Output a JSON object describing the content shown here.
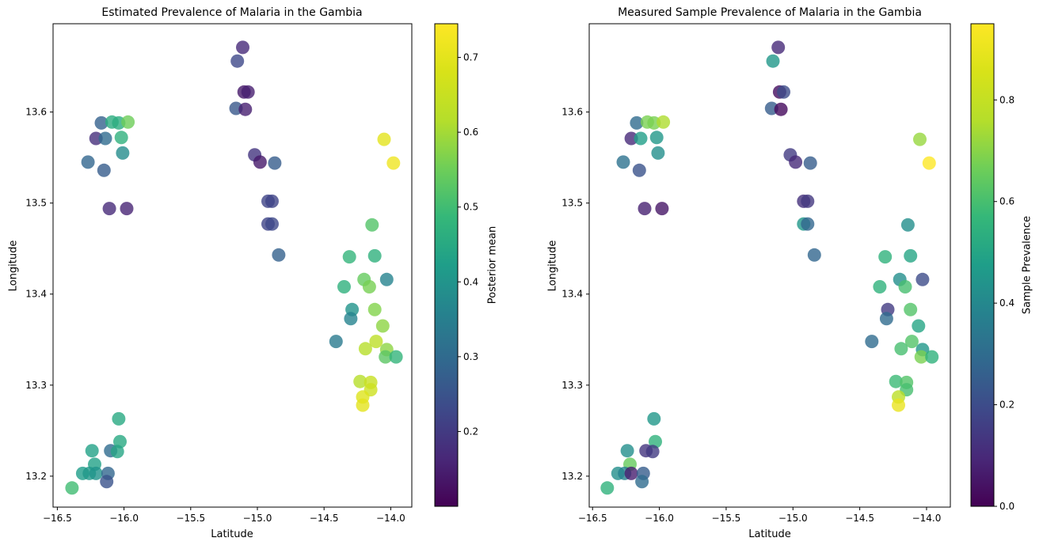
{
  "figure": {
    "background": "#ffffff",
    "text_color": "#000000",
    "colormap": "viridis"
  },
  "chart_data": [
    {
      "type": "scatter",
      "title": "Estimated Prevalence of Malaria in the Gambia",
      "xlabel": "Latitude",
      "ylabel": "Longitude",
      "colorbar_label": "Posterior mean",
      "colormap": "viridis",
      "marker_opacity": 0.8,
      "grid": false,
      "xlim": [
        -16.532,
        -13.842
      ],
      "ylim": [
        13.166,
        13.697
      ],
      "xticks": [
        -16.5,
        -16.0,
        -15.5,
        -15.0,
        -14.5,
        -14.0
      ],
      "yticks": [
        13.2,
        13.3,
        13.4,
        13.5,
        13.6
      ],
      "colorbar_ticks": [
        0.2,
        0.3,
        0.4,
        0.5,
        0.6,
        0.7
      ],
      "vmin": 0.1,
      "vmax": 0.745,
      "x": [
        -16.17,
        -16.09,
        -16.04,
        -15.97,
        -16.21,
        -16.14,
        -16.02,
        -16.01,
        -16.27,
        -16.15,
        -16.11,
        -15.98,
        -15.11,
        -15.15,
        -15.1,
        -15.07,
        -15.16,
        -15.09,
        -15.02,
        -14.98,
        -14.87,
        -14.92,
        -14.89,
        -14.92,
        -14.89,
        -14.84,
        -14.05,
        -13.98,
        -14.14,
        -14.31,
        -14.12,
        -14.35,
        -14.2,
        -14.16,
        -14.03,
        -14.29,
        -14.3,
        -14.12,
        -14.06,
        -14.41,
        -14.19,
        -14.11,
        -14.03,
        -14.04,
        -13.96,
        -14.23,
        -14.15,
        -14.15,
        -14.21,
        -14.21,
        -16.04,
        -16.03,
        -16.24,
        -16.1,
        -16.05,
        -16.22,
        -16.31,
        -16.26,
        -16.21,
        -16.12,
        -16.13,
        -16.39
      ],
      "y": [
        13.588,
        13.589,
        13.588,
        13.589,
        13.571,
        13.571,
        13.572,
        13.555,
        13.545,
        13.536,
        13.494,
        13.494,
        13.671,
        13.656,
        13.622,
        13.622,
        13.604,
        13.603,
        13.553,
        13.545,
        13.544,
        13.502,
        13.502,
        13.477,
        13.477,
        13.443,
        13.57,
        13.544,
        13.476,
        13.441,
        13.442,
        13.408,
        13.416,
        13.408,
        13.416,
        13.383,
        13.373,
        13.383,
        13.365,
        13.348,
        13.34,
        13.348,
        13.339,
        13.331,
        13.331,
        13.304,
        13.303,
        13.295,
        13.287,
        13.278,
        13.263,
        13.238,
        13.228,
        13.228,
        13.227,
        13.213,
        13.203,
        13.203,
        13.203,
        13.203,
        13.194,
        13.187
      ],
      "values": [
        0.28,
        0.46,
        0.46,
        0.55,
        0.18,
        0.3,
        0.47,
        0.38,
        0.29,
        0.27,
        0.17,
        0.16,
        0.17,
        0.23,
        0.14,
        0.15,
        0.26,
        0.15,
        0.19,
        0.14,
        0.27,
        0.22,
        0.22,
        0.22,
        0.23,
        0.28,
        0.7,
        0.72,
        0.52,
        0.48,
        0.47,
        0.47,
        0.54,
        0.56,
        0.36,
        0.4,
        0.36,
        0.57,
        0.58,
        0.34,
        0.62,
        0.63,
        0.58,
        0.53,
        0.48,
        0.62,
        0.65,
        0.66,
        0.69,
        0.7,
        0.45,
        0.45,
        0.43,
        0.3,
        0.44,
        0.43,
        0.42,
        0.41,
        0.4,
        0.29,
        0.25,
        0.5
      ]
    },
    {
      "type": "scatter",
      "title": "Measured Sample Prevalence of Malaria in the Gambia",
      "xlabel": "Latitude",
      "ylabel": "Longitude",
      "colorbar_label": "Sample Prevalence",
      "colormap": "viridis",
      "marker_opacity": 0.8,
      "grid": false,
      "xlim": [
        -16.525,
        -13.822
      ],
      "ylim": [
        13.166,
        13.697
      ],
      "xticks": [
        -16.5,
        -16.0,
        -15.5,
        -15.0,
        -14.5,
        -14.0
      ],
      "yticks": [
        13.2,
        13.3,
        13.4,
        13.5,
        13.6
      ],
      "colorbar_ticks": [
        0.0,
        0.2,
        0.4,
        0.6,
        0.8
      ],
      "vmin": 0.0,
      "vmax": 0.95,
      "x": [
        -16.17,
        -16.09,
        -16.04,
        -15.97,
        -16.21,
        -16.14,
        -16.02,
        -16.01,
        -16.27,
        -16.15,
        -16.11,
        -15.98,
        -15.11,
        -15.15,
        -15.1,
        -15.07,
        -15.16,
        -15.09,
        -15.02,
        -14.98,
        -14.87,
        -14.92,
        -14.89,
        -14.92,
        -14.89,
        -14.84,
        -14.05,
        -13.98,
        -14.14,
        -14.31,
        -14.12,
        -14.35,
        -14.2,
        -14.16,
        -14.03,
        -14.29,
        -14.3,
        -14.12,
        -14.06,
        -14.41,
        -14.19,
        -14.11,
        -14.03,
        -14.04,
        -13.96,
        -14.23,
        -14.15,
        -14.15,
        -14.21,
        -14.21,
        -16.04,
        -16.03,
        -16.24,
        -16.1,
        -16.05,
        -16.22,
        -16.31,
        -16.26,
        -16.21,
        -16.12,
        -16.13,
        -16.39
      ],
      "y": [
        13.588,
        13.589,
        13.588,
        13.589,
        13.571,
        13.571,
        13.572,
        13.555,
        13.545,
        13.536,
        13.494,
        13.494,
        13.671,
        13.656,
        13.622,
        13.622,
        13.604,
        13.603,
        13.553,
        13.545,
        13.544,
        13.502,
        13.502,
        13.477,
        13.477,
        13.443,
        13.57,
        13.544,
        13.476,
        13.441,
        13.442,
        13.408,
        13.416,
        13.408,
        13.416,
        13.383,
        13.373,
        13.383,
        13.365,
        13.348,
        13.34,
        13.348,
        13.339,
        13.331,
        13.331,
        13.304,
        13.303,
        13.295,
        13.287,
        13.278,
        13.263,
        13.238,
        13.228,
        13.228,
        13.227,
        13.213,
        13.203,
        13.203,
        13.203,
        13.203,
        13.194,
        13.187
      ],
      "values": [
        0.3,
        0.68,
        0.68,
        0.75,
        0.1,
        0.48,
        0.45,
        0.42,
        0.32,
        0.22,
        0.08,
        0.05,
        0.1,
        0.45,
        0.03,
        0.2,
        0.25,
        0.02,
        0.15,
        0.1,
        0.25,
        0.12,
        0.14,
        0.45,
        0.28,
        0.28,
        0.72,
        0.95,
        0.42,
        0.55,
        0.5,
        0.55,
        0.42,
        0.6,
        0.2,
        0.15,
        0.3,
        0.62,
        0.5,
        0.3,
        0.6,
        0.62,
        0.45,
        0.68,
        0.55,
        0.58,
        0.62,
        0.6,
        0.78,
        0.9,
        0.45,
        0.55,
        0.42,
        0.13,
        0.15,
        0.65,
        0.42,
        0.38,
        0.07,
        0.25,
        0.3,
        0.55
      ]
    }
  ]
}
